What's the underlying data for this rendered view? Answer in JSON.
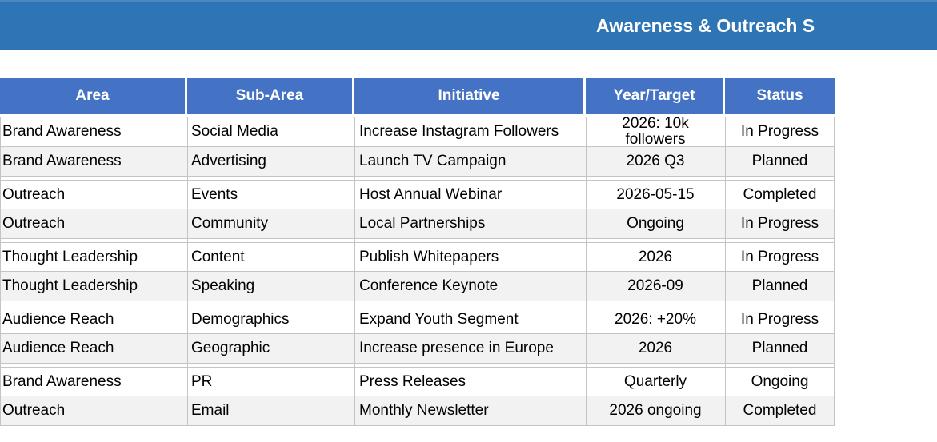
{
  "banner": {
    "title": "Awareness & Outreach S"
  },
  "colors": {
    "banner-bg": "#2e75b6",
    "header-bg": "#4472c4",
    "alt-row-bg": "#f2f2f2",
    "border-color": "#c4c4c4"
  },
  "table": {
    "columns": [
      "Area",
      "Sub-Area",
      "Initiative",
      "Year/Target",
      "Status"
    ],
    "rows": [
      {
        "area": "Brand Awareness",
        "sub_area": "Social Media",
        "initiative": "Increase Instagram Followers",
        "year_target": "2026: 10k followers",
        "status": "In Progress"
      },
      {
        "area": "Brand Awareness",
        "sub_area": "Advertising",
        "initiative": "Launch TV Campaign",
        "year_target": "2026 Q3",
        "status": "Planned"
      },
      {
        "area": "Outreach",
        "sub_area": "Events",
        "initiative": "Host Annual Webinar",
        "year_target": "2026-05-15",
        "status": "Completed"
      },
      {
        "area": "Outreach",
        "sub_area": "Community",
        "initiative": "Local Partnerships",
        "year_target": "Ongoing",
        "status": "In Progress"
      },
      {
        "area": "Thought Leadership",
        "sub_area": "Content",
        "initiative": "Publish Whitepapers",
        "year_target": "2026",
        "status": "In Progress"
      },
      {
        "area": "Thought Leadership",
        "sub_area": "Speaking",
        "initiative": "Conference Keynote",
        "year_target": "2026-09",
        "status": "Planned"
      },
      {
        "area": "Audience Reach",
        "sub_area": "Demographics",
        "initiative": "Expand Youth Segment",
        "year_target": "2026: +20%",
        "status": "In Progress"
      },
      {
        "area": "Audience Reach",
        "sub_area": "Geographic",
        "initiative": "Increase presence in Europe",
        "year_target": "2026",
        "status": "Planned"
      },
      {
        "area": "Brand Awareness",
        "sub_area": "PR",
        "initiative": "Press Releases",
        "year_target": "Quarterly",
        "status": "Ongoing"
      },
      {
        "area": "Outreach",
        "sub_area": "Email",
        "initiative": "Monthly Newsletter",
        "year_target": "2026 ongoing",
        "status": "Completed"
      }
    ]
  }
}
